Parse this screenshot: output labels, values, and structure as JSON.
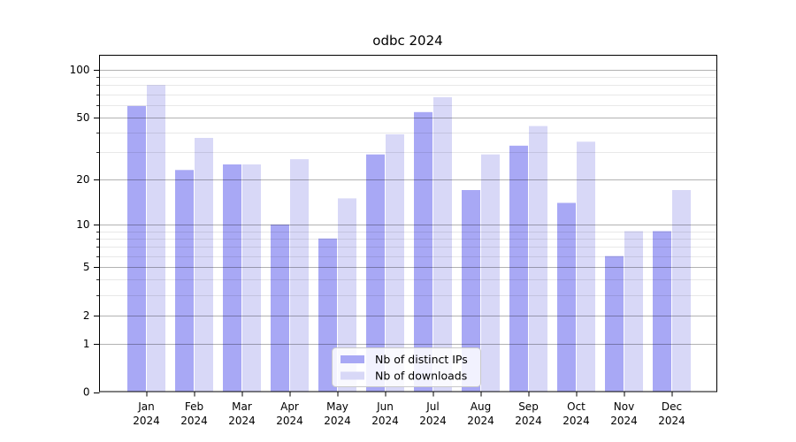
{
  "figure": {
    "title": "odbc 2024"
  },
  "chart_data": {
    "type": "bar",
    "title": "odbc 2024",
    "categories": [
      "Jan",
      "Feb",
      "Mar",
      "Apr",
      "May",
      "Jun",
      "Jul",
      "Aug",
      "Sep",
      "Oct",
      "Nov",
      "Dec"
    ],
    "x_tick_second_line": "2024",
    "series": [
      {
        "name": "Nb of distinct IPs",
        "color": "#a8a8f5",
        "values": [
          59,
          23,
          25,
          10,
          8,
          29,
          54,
          17,
          33,
          14,
          6,
          9
        ]
      },
      {
        "name": "Nb of downloads",
        "color": "#d8d8f7",
        "values": [
          80,
          37,
          25,
          27,
          15,
          39,
          67,
          29,
          44,
          35,
          9,
          17
        ]
      }
    ],
    "xlabel": "",
    "ylabel": "",
    "yscale": "log1p",
    "ylim": [
      0,
      126
    ],
    "y_major_ticks": [
      0,
      1,
      2,
      5,
      10,
      20,
      50,
      100
    ],
    "y_minor_ticks": [
      3,
      4,
      6,
      7,
      8,
      9,
      30,
      40,
      60,
      70,
      80,
      90
    ],
    "grid": "horizontal, drawn over bars",
    "legend_position": "lower center"
  },
  "colors": {
    "bar_distinct_ips": "#a8a8f5",
    "bar_downloads": "#d8d8f7",
    "grid_major": "rgba(0,0,0,0.30)",
    "grid_minor": "rgba(0,0,0,0.09)",
    "spine": "#000000",
    "legend_border": "#c9c9c9",
    "legend_background": "rgba(255,255,255,0.85)",
    "text": "#000000"
  }
}
